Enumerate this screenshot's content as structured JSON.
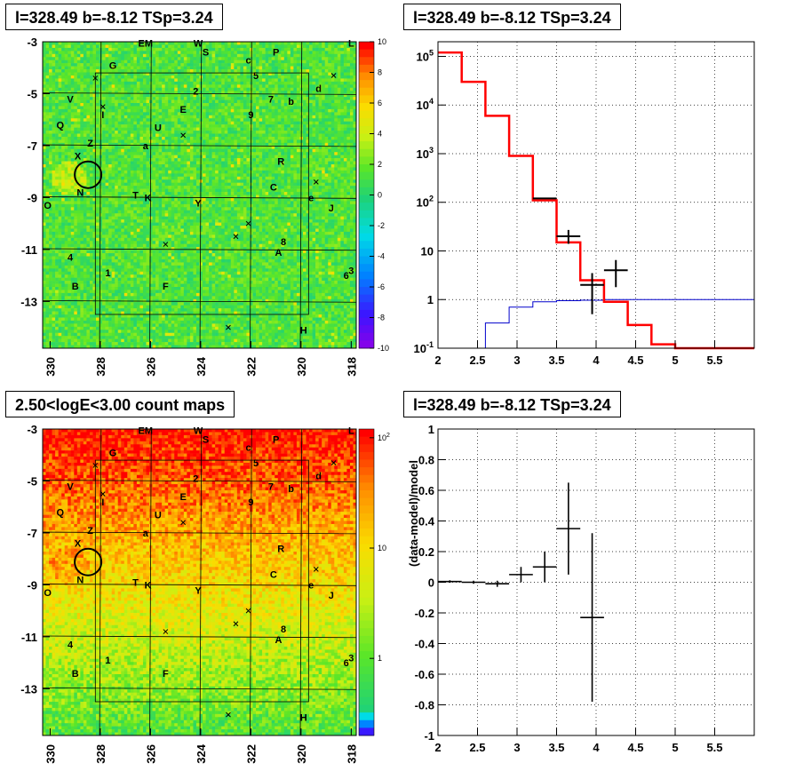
{
  "panels": {
    "map_top": {
      "title": "l=328.49 b=-8.12 TSp=3.24"
    },
    "spectrum": {
      "title": "l=328.49 b=-8.12 TSp=3.24"
    },
    "map_bottom": {
      "title": "2.50<logE<3.00 count maps"
    },
    "residual": {
      "title": "l=328.49 b=-8.12 TSp=3.24"
    }
  },
  "colors": {
    "model_red": "#ff0000",
    "component_blue": "#0000cc",
    "data_black": "#000000"
  },
  "chart_data": [
    {
      "id": "map_top",
      "type": "heatmap",
      "title": "l=328.49 b=-8.12 TSp=3.24",
      "x_ticks": [
        "330",
        "328",
        "326",
        "324",
        "322",
        "320",
        "318"
      ],
      "y_ticks": [
        "-3",
        "-5",
        "-7",
        "-9",
        "-11",
        "-13"
      ],
      "xlim": [
        330.3,
        317.8
      ],
      "ylim": [
        -14.8,
        -3.0
      ],
      "colorbar": {
        "scale": "linear",
        "range": [
          -10,
          10
        ],
        "ticks": [
          "10",
          "8",
          "6",
          "4",
          "2",
          "0",
          "-2",
          "-4",
          "-6",
          "-8",
          "-10"
        ]
      },
      "source_circle": {
        "l": 328.49,
        "b": -8.12
      },
      "labels": [
        {
          "t": "EM",
          "l": 326.2,
          "b": -3.05
        },
        {
          "t": "W",
          "l": 324.1,
          "b": -3.05
        },
        {
          "t": "L",
          "l": 318.0,
          "b": -3.05
        },
        {
          "t": "S",
          "l": 323.8,
          "b": -3.4
        },
        {
          "t": "P",
          "l": 321.0,
          "b": -3.4
        },
        {
          "t": "c",
          "l": 322.1,
          "b": -3.7
        },
        {
          "t": "G",
          "l": 327.5,
          "b": -3.9
        },
        {
          "t": "5",
          "l": 321.8,
          "b": -4.3
        },
        {
          "t": "d",
          "l": 319.3,
          "b": -4.8
        },
        {
          "t": "2",
          "l": 324.2,
          "b": -4.9
        },
        {
          "t": "V",
          "l": 329.2,
          "b": -5.2
        },
        {
          "t": "7",
          "l": 321.2,
          "b": -5.2
        },
        {
          "t": "b",
          "l": 320.4,
          "b": -5.3
        },
        {
          "t": "I",
          "l": 327.9,
          "b": -5.8
        },
        {
          "t": "E",
          "l": 324.7,
          "b": -5.6
        },
        {
          "t": "9",
          "l": 322.0,
          "b": -5.8
        },
        {
          "t": "Q",
          "l": 329.6,
          "b": -6.2
        },
        {
          "t": "U",
          "l": 325.7,
          "b": -6.3
        },
        {
          "t": "Z",
          "l": 328.4,
          "b": -6.9
        },
        {
          "t": "a",
          "l": 326.2,
          "b": -7.0
        },
        {
          "t": "X",
          "l": 328.9,
          "b": -7.4
        },
        {
          "t": "R",
          "l": 320.8,
          "b": -7.6
        },
        {
          "t": "C",
          "l": 321.1,
          "b": -8.6
        },
        {
          "t": "N",
          "l": 328.8,
          "b": -8.8
        },
        {
          "t": "T",
          "l": 326.6,
          "b": -8.9
        },
        {
          "t": "K",
          "l": 326.1,
          "b": -9.0
        },
        {
          "t": "Y",
          "l": 324.1,
          "b": -9.2
        },
        {
          "t": "e",
          "l": 319.6,
          "b": -9.0
        },
        {
          "t": "O",
          "l": 330.1,
          "b": -9.3
        },
        {
          "t": "J",
          "l": 318.8,
          "b": -9.4
        },
        {
          "t": "8",
          "l": 320.7,
          "b": -10.7
        },
        {
          "t": "A",
          "l": 320.9,
          "b": -11.1
        },
        {
          "t": "4",
          "l": 329.2,
          "b": -11.3
        },
        {
          "t": "1",
          "l": 327.7,
          "b": -11.9
        },
        {
          "t": "6",
          "l": 318.2,
          "b": -12.0
        },
        {
          "t": "3",
          "l": 318.0,
          "b": -11.8
        },
        {
          "t": "B",
          "l": 329.0,
          "b": -12.4
        },
        {
          "t": "F",
          "l": 325.4,
          "b": -12.4
        },
        {
          "t": "H",
          "l": 319.9,
          "b": -14.1
        }
      ],
      "crosses": [
        {
          "l": 328.2,
          "b": -4.4
        },
        {
          "l": 318.7,
          "b": -4.3
        },
        {
          "l": 327.9,
          "b": -5.5
        },
        {
          "l": 324.7,
          "b": -6.6
        },
        {
          "l": 319.4,
          "b": -8.4
        },
        {
          "l": 322.1,
          "b": -10.0
        },
        {
          "l": 322.6,
          "b": -10.5
        },
        {
          "l": 325.4,
          "b": -10.8
        },
        {
          "l": 322.9,
          "b": -14.0
        }
      ]
    },
    {
      "id": "spectrum",
      "type": "line",
      "title": "l=328.49 b=-8.12 TSp=3.24",
      "xlim": [
        2.0,
        6.0
      ],
      "ylim": [
        0.1,
        200000
      ],
      "yscale": "log",
      "grid": true,
      "x_ticks": [
        "2",
        "2.5",
        "3",
        "3.5",
        "4",
        "4.5",
        "5",
        "5.5"
      ],
      "y_ticks": [
        "10^-1",
        "1",
        "10",
        "10^2",
        "10^3",
        "10^4",
        "10^5"
      ],
      "series": [
        {
          "kind": "total_model",
          "bin_edges": [
            2.0,
            2.3,
            2.6,
            2.9,
            3.2,
            3.5,
            3.8,
            4.1,
            4.4,
            4.7,
            5.0,
            6.0
          ],
          "values": [
            120000,
            30000,
            6000,
            900,
            110,
            15,
            2.5,
            0.9,
            0.3,
            0.12,
            0.1
          ]
        },
        {
          "kind": "source_model",
          "bin_edges": [
            2.6,
            2.9,
            3.2,
            3.5,
            3.8,
            4.1,
            6.0
          ],
          "values": [
            0.33,
            0.7,
            0.9,
            0.95,
            0.97,
            1.0
          ]
        },
        {
          "kind": "data",
          "points": [
            {
              "x": 3.35,
              "y": 120,
              "xerr": 0.15
            },
            {
              "x": 3.65,
              "y": 20,
              "xerr": 0.15,
              "ylo": 14,
              "yhi": 27
            },
            {
              "x": 3.95,
              "y": 2,
              "xerr": 0.15,
              "ylo": 0.5,
              "yhi": 3.5
            },
            {
              "x": 4.25,
              "y": 4,
              "xerr": 0.15,
              "ylo": 1.8,
              "yhi": 6.5
            }
          ]
        }
      ]
    },
    {
      "id": "map_bottom",
      "type": "heatmap",
      "title": "2.50<logE<3.00 count maps",
      "x_ticks": [
        "330",
        "328",
        "326",
        "324",
        "322",
        "320",
        "318"
      ],
      "y_ticks": [
        "-3",
        "-5",
        "-7",
        "-9",
        "-11",
        "-13"
      ],
      "xlim": [
        330.3,
        317.8
      ],
      "ylim": [
        -14.8,
        -3.0
      ],
      "colorbar": {
        "scale": "log",
        "range": [
          0.2,
          120
        ],
        "ticks": [
          "10^2",
          "10",
          "1"
        ]
      },
      "source_circle": {
        "l": 328.49,
        "b": -8.12
      }
    },
    {
      "id": "residual",
      "type": "scatter",
      "title": "l=328.49 b=-8.12 TSp=3.24",
      "ylabel": "(data-model)/model",
      "xlim": [
        2.0,
        6.0
      ],
      "ylim": [
        -1.0,
        1.0
      ],
      "grid": true,
      "x_ticks": [
        "2",
        "2.5",
        "3",
        "3.5",
        "4",
        "4.5",
        "5",
        "5.5"
      ],
      "y_ticks": [
        "1",
        "0.8",
        "0.6",
        "0.4",
        "0.2",
        "0",
        "-0.2",
        "-0.4",
        "-0.6",
        "-0.8",
        "-1"
      ],
      "points": [
        {
          "x": 2.15,
          "y": 0.005,
          "xerr": 0.15,
          "yerr": 0.008
        },
        {
          "x": 2.45,
          "y": 0.0,
          "xerr": 0.15,
          "yerr": 0.01
        },
        {
          "x": 2.75,
          "y": -0.01,
          "xerr": 0.15,
          "yerr": 0.02
        },
        {
          "x": 3.05,
          "y": 0.05,
          "xerr": 0.15,
          "yerr": 0.05
        },
        {
          "x": 3.35,
          "y": 0.1,
          "xerr": 0.15,
          "yerr": 0.1
        },
        {
          "x": 3.65,
          "y": 0.35,
          "xerr": 0.15,
          "yerr": 0.3
        },
        {
          "x": 3.95,
          "y": -0.23,
          "xerr": 0.15,
          "yerr": 0.55
        }
      ]
    }
  ]
}
